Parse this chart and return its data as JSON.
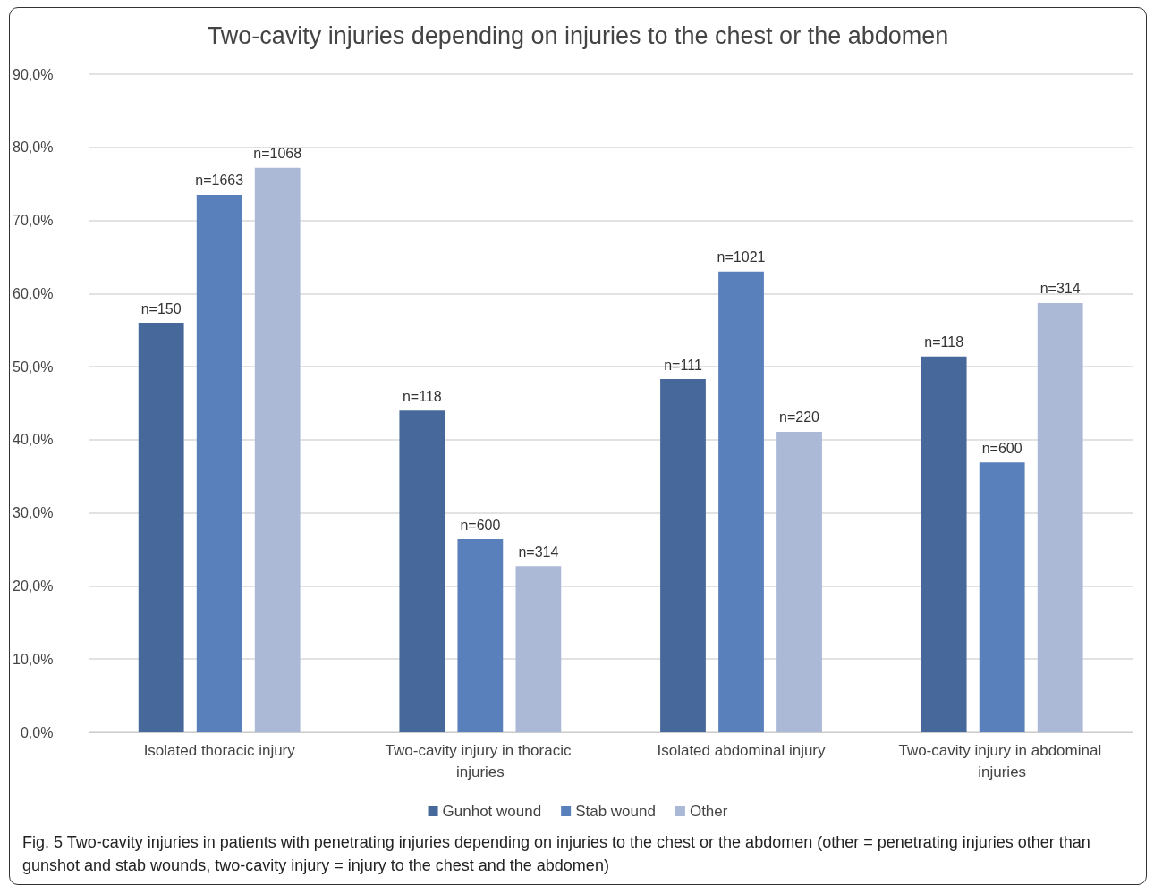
{
  "chart_data": {
    "type": "bar",
    "title": "Two-cavity injuries depending on injuries to the chest or the abdomen",
    "categories": [
      "Isolated thoracic injury",
      "Two-cavity injury in thoracic injuries",
      "Isolated abdominal injury",
      "Two-cavity injury in abdominal injuries"
    ],
    "series": [
      {
        "name": "Gunhot wound",
        "color": "#47689a",
        "values": [
          56.0,
          44.0,
          48.3,
          51.4
        ]
      },
      {
        "name": "Stab wound",
        "color": "#5a80bb",
        "values": [
          73.5,
          26.4,
          63.0,
          36.9
        ]
      },
      {
        "name": "Other",
        "color": "#abb9d6",
        "values": [
          77.2,
          22.7,
          41.1,
          58.7
        ]
      }
    ],
    "ylim": [
      0,
      90
    ],
    "yticks": [
      {
        "value": 0,
        "label": "0,0%"
      },
      {
        "value": 10,
        "label": "10,0%"
      },
      {
        "value": 20,
        "label": "20,0%"
      },
      {
        "value": 30,
        "label": "30,0%"
      },
      {
        "value": 40,
        "label": "40,0%"
      },
      {
        "value": 50,
        "label": "50,0%"
      },
      {
        "value": 60,
        "label": "60,0%"
      },
      {
        "value": 70,
        "label": "70,0%"
      },
      {
        "value": 80,
        "label": "80,0%"
      },
      {
        "value": 90,
        "label": "90,0%"
      }
    ],
    "grid": "y",
    "legend": "bottom",
    "annotations": [
      "n=150",
      "n=1663",
      "n=1068",
      "n=118",
      "n=600",
      "n=314",
      "n=111",
      "n=1021",
      "n=220",
      "n=118",
      "n=600",
      "n=314",
      "Fig. 5 Two-cavity injuries in patients with penetrating injuries depending on injuries to the chest or the abdomen (other = penetrating injuries other than gunshot and stab wounds, two-cavity injury = injury to the chest and the abdomen)"
    ]
  }
}
